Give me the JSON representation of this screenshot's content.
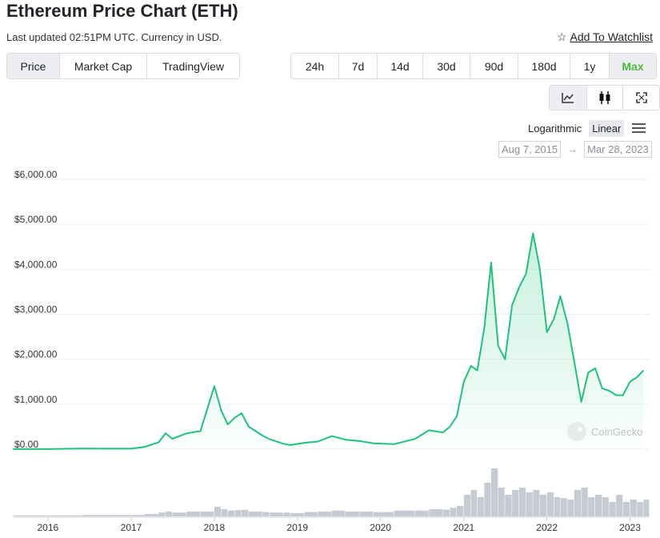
{
  "header": {
    "title": "Ethereum Price Chart (ETH)",
    "updated": "Last updated 02:51PM UTC. Currency in USD.",
    "watchlist": "Add To Watchlist"
  },
  "tabs": [
    "Price",
    "Market Cap",
    "TradingView"
  ],
  "ranges": [
    "24h",
    "7d",
    "14d",
    "30d",
    "90d",
    "180d",
    "1y",
    "Max"
  ],
  "active_range": "Max",
  "chart_tools": [
    "line-chart-icon",
    "candlestick-icon",
    "fullscreen-icon"
  ],
  "scale": {
    "log": "Logarithmic",
    "linear": "Linear",
    "active": "Linear"
  },
  "date_range": {
    "from": "Aug 7, 2015",
    "to": "Mar 28, 2023"
  },
  "watermark": "CoinGecko",
  "colors": {
    "line": "#1ec27c",
    "accent": "#4eb83b",
    "volume": "#c6cad3"
  },
  "chart_data": {
    "type": "area",
    "x": [
      "2015-08",
      "2016-01",
      "2016-06",
      "2017-01",
      "2017-03",
      "2017-05",
      "2017-06",
      "2017-07",
      "2017-09",
      "2017-11",
      "2018-01",
      "2018-02",
      "2018-03",
      "2018-04",
      "2018-05",
      "2018-06",
      "2018-08",
      "2018-09",
      "2018-11",
      "2018-12",
      "2019-02",
      "2019-04",
      "2019-06",
      "2019-08",
      "2019-10",
      "2019-12",
      "2020-03",
      "2020-06",
      "2020-08",
      "2020-10",
      "2020-11",
      "2020-12",
      "2021-01",
      "2021-02",
      "2021-03",
      "2021-04",
      "2021-05",
      "2021-06",
      "2021-07",
      "2021-08",
      "2021-09",
      "2021-10",
      "2021-11",
      "2021-12",
      "2022-01",
      "2022-02",
      "2022-03",
      "2022-04",
      "2022-05",
      "2022-06",
      "2022-07",
      "2022-08",
      "2022-09",
      "2022-10",
      "2022-11",
      "2022-12",
      "2023-01",
      "2023-02",
      "2023-03"
    ],
    "y": [
      2,
      1,
      12,
      10,
      50,
      150,
      350,
      230,
      350,
      400,
      1400,
      850,
      550,
      700,
      800,
      500,
      300,
      220,
      120,
      90,
      140,
      170,
      290,
      210,
      180,
      130,
      110,
      230,
      420,
      370,
      500,
      730,
      1500,
      1850,
      1750,
      2700,
      4150,
      2300,
      2000,
      3200,
      3600,
      3900,
      4800,
      4000,
      2600,
      2900,
      3400,
      2800,
      1950,
      1050,
      1700,
      1800,
      1350,
      1300,
      1200,
      1200,
      1500,
      1600,
      1750
    ],
    "ylim": [
      0,
      6000
    ],
    "yticks": [
      "$0.00",
      "$1,000.00",
      "$2,000.00",
      "$3,000.00",
      "$4,000.00",
      "$5,000.00",
      "$6,000.00"
    ],
    "xticks": [
      "2016",
      "2017",
      "2018",
      "2019",
      "2020",
      "2021",
      "2022",
      "2023"
    ],
    "grid": true,
    "volume": [
      0.02,
      0.02,
      0.03,
      0.03,
      0.05,
      0.08,
      0.1,
      0.08,
      0.1,
      0.1,
      0.2,
      0.15,
      0.12,
      0.13,
      0.14,
      0.1,
      0.09,
      0.08,
      0.08,
      0.07,
      0.09,
      0.1,
      0.12,
      0.1,
      0.1,
      0.09,
      0.12,
      0.12,
      0.15,
      0.14,
      0.18,
      0.22,
      0.45,
      0.55,
      0.4,
      0.7,
      1.0,
      0.6,
      0.45,
      0.55,
      0.6,
      0.5,
      0.55,
      0.45,
      0.5,
      0.4,
      0.38,
      0.35,
      0.55,
      0.6,
      0.4,
      0.45,
      0.4,
      0.3,
      0.45,
      0.3,
      0.35,
      0.3,
      0.35
    ]
  }
}
